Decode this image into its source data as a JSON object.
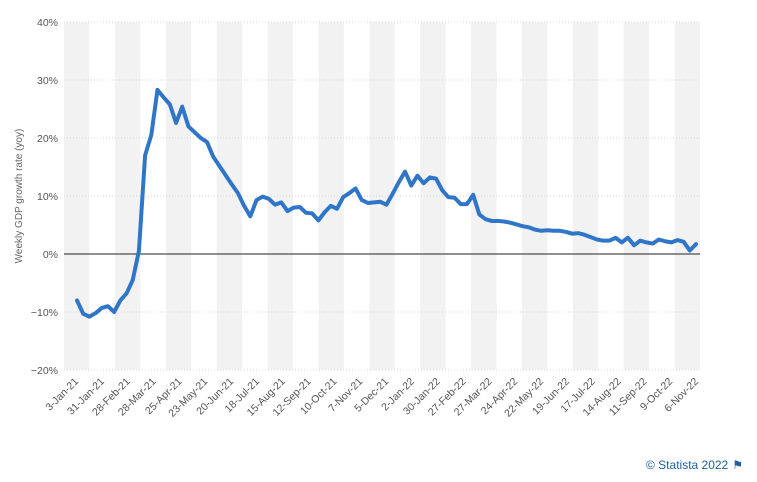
{
  "chart_data": {
    "type": "line",
    "title": "",
    "xlabel": "",
    "ylabel": "Weekly GDP growth rate (yoy)",
    "ylim": [
      -20,
      40
    ],
    "yticks": [
      -20,
      -10,
      0,
      10,
      20,
      30,
      40
    ],
    "ytick_labels": [
      "−20%",
      "−10%",
      "0%",
      "10%",
      "20%",
      "30%",
      "40%"
    ],
    "xtick_labels": [
      "3-Jan-21",
      "31-Jan-21",
      "28-Feb-21",
      "28-Mar-21",
      "25-Apr-21",
      "23-May-21",
      "20-Jun-21",
      "18-Jul-21",
      "15-Aug-21",
      "12-Sep-21",
      "10-Oct-21",
      "7-Nov-21",
      "5-Dec-21",
      "2-Jan-22",
      "30-Jan-22",
      "27-Feb-22",
      "27-Mar-22",
      "24-Apr-22",
      "22-May-22",
      "19-Jun-22",
      "17-Jul-22",
      "14-Aug-22",
      "11-Sep-22",
      "9-Oct-22",
      "6-Nov-22"
    ],
    "grid": true,
    "line_color": "#2f76c9",
    "series": [
      {
        "values": [
          -8.0,
          -10.3,
          -10.8,
          -10.2,
          -9.3,
          -9.0,
          -10.0,
          -8.0,
          -6.8,
          -4.5,
          0.5,
          17.0,
          20.5,
          28.3,
          27.0,
          25.8,
          22.6,
          25.4,
          22.0,
          21.0,
          20.0,
          19.3,
          16.8,
          15.2,
          13.6,
          12.0,
          10.5,
          8.3,
          6.5,
          9.3,
          9.9,
          9.5,
          8.5,
          8.9,
          7.4,
          8.0,
          8.1,
          7.1,
          7.0,
          5.8,
          7.2,
          8.3,
          7.8,
          9.8,
          10.5,
          11.3,
          9.3,
          8.8,
          8.9,
          9.0,
          8.5,
          10.4,
          12.4,
          14.2,
          11.8,
          13.5,
          12.2,
          13.2,
          13.0,
          11.0,
          9.8,
          9.7,
          8.6,
          8.6,
          10.2,
          6.8,
          6.0,
          5.7,
          5.7,
          5.6,
          5.4,
          5.1,
          4.8,
          4.6,
          4.2,
          4.0,
          4.1,
          4.0,
          4.0,
          3.8,
          3.5,
          3.6,
          3.3,
          2.9,
          2.5,
          2.3,
          2.3,
          2.8,
          2.0,
          2.8,
          1.5,
          2.3,
          2.0,
          1.8,
          2.5,
          2.2,
          2.0,
          2.4,
          2.1,
          0.6,
          1.7
        ]
      }
    ]
  },
  "footer": {
    "credit": "© Statista 2022"
  }
}
